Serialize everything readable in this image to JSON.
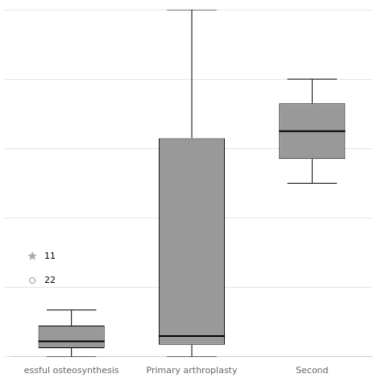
{
  "chart_data": {
    "type": "box",
    "categories": [
      "essful osteosynthesis",
      "Primary arthroplasty",
      "Second"
    ],
    "boxes": [
      {
        "q1": 2.5,
        "median": 4.5,
        "q3": 9.0,
        "whisker_low": 0.0,
        "whisker_high": 13.5
      },
      {
        "q1": 3.5,
        "median": 6.0,
        "q3": 63.0,
        "whisker_low": 0.0,
        "whisker_high": 100.0
      },
      {
        "q1": 57.0,
        "median": 65.0,
        "q3": 73.0,
        "whisker_low": 50.0,
        "whisker_high": 80.0
      }
    ],
    "outliers": [
      [
        {
          "value": 22.0,
          "marker": "o",
          "label": "22"
        },
        {
          "value": 29.0,
          "marker": "*",
          "label": "11"
        }
      ],
      [],
      []
    ],
    "color": "#999999",
    "ylim": [
      0,
      100
    ],
    "yticks": [
      0,
      20,
      40,
      60,
      80,
      100
    ],
    "grid": true,
    "tick_labels": "x"
  }
}
